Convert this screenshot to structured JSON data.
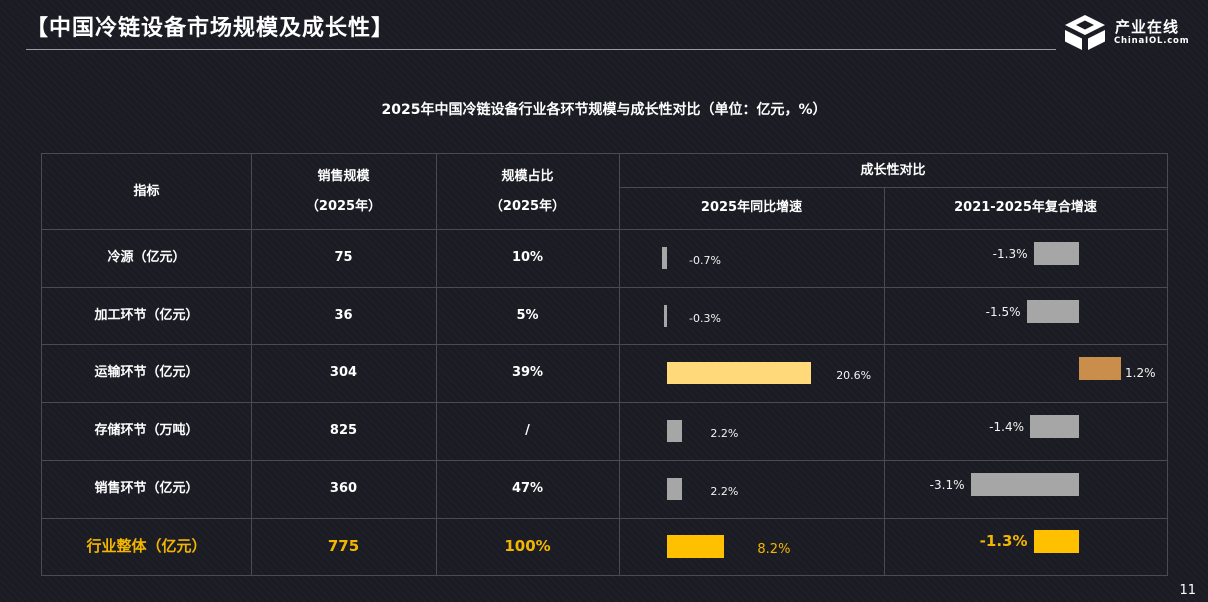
{
  "page_title": "【中国冷链设备市场规模及成长性】",
  "logo": {
    "name": "产业在线",
    "sub": "ChinaIOL.com"
  },
  "subtitle": "2025年中国冷链设备行业各环节规模与成长性对比（单位：亿元，%）",
  "page_number": "11",
  "header": {
    "indicator": "指标",
    "sales_1": "销售规模",
    "sales_2": "（2025年）",
    "share_1": "规模占比",
    "share_2": "（2025年）",
    "growth": "成长性对比",
    "yoy": "2025年同比增速",
    "cagr": "2021-2025年复合增速"
  },
  "colors": {
    "gray_bar": "#a6a6a6",
    "yellow_bar": "#ffd97a",
    "orange_bar": "#c98d4c",
    "gold": "#ffc000"
  },
  "rows": [
    {
      "name": "冷源（亿元）",
      "sales": "75",
      "share": "10%",
      "yoy": -0.7,
      "yoy_label": "-0.7%",
      "cagr": -1.3,
      "cagr_label": "-1.3%"
    },
    {
      "name": "加工环节（亿元）",
      "sales": "36",
      "share": "5%",
      "yoy": -0.3,
      "yoy_label": "-0.3%",
      "cagr": -1.5,
      "cagr_label": "-1.5%"
    },
    {
      "name": "运输环节（亿元）",
      "sales": "304",
      "share": "39%",
      "yoy": 20.6,
      "yoy_label": "20.6%",
      "cagr": 1.2,
      "cagr_label": "1.2%"
    },
    {
      "name": "存储环节（万吨）",
      "sales": "825",
      "share": "/",
      "yoy": 2.2,
      "yoy_label": "2.2%",
      "cagr": -1.4,
      "cagr_label": "-1.4%"
    },
    {
      "name": "销售环节（亿元）",
      "sales": "360",
      "share": "47%",
      "yoy": 2.2,
      "yoy_label": "2.2%",
      "cagr": -3.1,
      "cagr_label": "-3.1%"
    },
    {
      "name": "行业整体（亿元）",
      "sales": "775",
      "share": "100%",
      "yoy": 8.2,
      "yoy_label": "8.2%",
      "cagr": -1.3,
      "cagr_label": "-1.3%"
    }
  ]
}
